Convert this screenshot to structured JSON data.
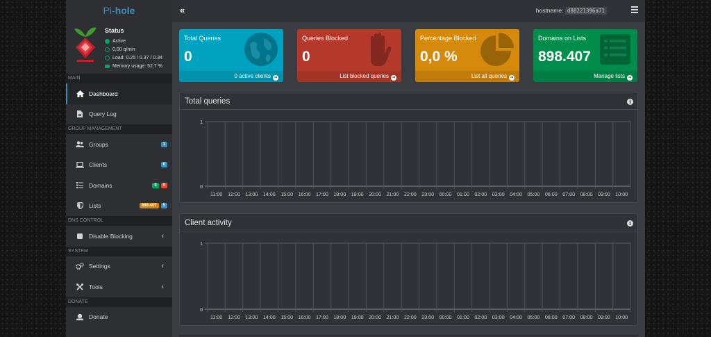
{
  "app": {
    "logo_prefix": "Pi-",
    "logo_bold": "hole"
  },
  "status": {
    "title": "Status",
    "active": "Active",
    "rate": "0,00 q/min",
    "load": "Load: 0.25 / 0.37 / 0.34",
    "memory": "Memory usage: 52.7 %"
  },
  "nav": {
    "main_header": "MAIN",
    "dashboard": "Dashboard",
    "query_log": "Query Log",
    "group_header": "GROUP MANAGEMENT",
    "groups": "Groups",
    "groups_badge": "1",
    "clients": "Clients",
    "clients_badge": "0",
    "domains": "Domains",
    "domains_badge_allow": "0",
    "domains_badge_deny": "0",
    "lists": "Lists",
    "lists_badge_domains": "898.407",
    "lists_badge_count": "5",
    "dns_header": "DNS CONTROL",
    "disable_blocking": "Disable Blocking",
    "system_header": "SYSTEM",
    "settings": "Settings",
    "tools": "Tools",
    "donate_header": "DONATE",
    "donate": "Donate"
  },
  "topbar": {
    "collapse": "«",
    "hostname_label": "hostname:",
    "hostname_value": "d88221396a71"
  },
  "stats": [
    {
      "label": "Total Queries",
      "value": "0",
      "footer": "0 active clients",
      "color": "#00a2c0",
      "icon": "globe-icon"
    },
    {
      "label": "Queries Blocked",
      "value": "0",
      "footer": "List blocked queries",
      "color": "#b5392a",
      "icon": "hand-icon"
    },
    {
      "label": "Percentage Blocked",
      "value": "0,0 %",
      "footer": "List all queries",
      "color": "#d68a0c",
      "icon": "pie-chart-icon"
    },
    {
      "label": "Domains on Lists",
      "value": "898.407",
      "footer": "Manage lists",
      "color": "#008d4c",
      "icon": "list-icon"
    }
  ],
  "chart_data": [
    {
      "type": "bar",
      "title": "Total queries",
      "categories": [
        "11:00",
        "12:00",
        "13:00",
        "14:00",
        "15:00",
        "16:00",
        "17:00",
        "18:00",
        "19:00",
        "20:00",
        "21:00",
        "22:00",
        "23:00",
        "00:00",
        "01:00",
        "02:00",
        "03:00",
        "04:00",
        "05:00",
        "06:00",
        "07:00",
        "08:00",
        "09:00",
        "10:00"
      ],
      "values": [
        0,
        0,
        0,
        0,
        0,
        0,
        0,
        0,
        0,
        0,
        0,
        0,
        0,
        0,
        0,
        0,
        0,
        0,
        0,
        0,
        0,
        0,
        0,
        0
      ],
      "yticks": [
        "0",
        "1"
      ],
      "ylim": [
        0,
        1
      ],
      "grid": true
    },
    {
      "type": "bar",
      "title": "Client activity",
      "categories": [
        "11:00",
        "12:00",
        "13:00",
        "14:00",
        "15:00",
        "16:00",
        "17:00",
        "18:00",
        "19:00",
        "20:00",
        "21:00",
        "22:00",
        "23:00",
        "00:00",
        "01:00",
        "02:00",
        "03:00",
        "04:00",
        "05:00",
        "06:00",
        "07:00",
        "08:00",
        "09:00",
        "10:00"
      ],
      "values": [
        0,
        0,
        0,
        0,
        0,
        0,
        0,
        0,
        0,
        0,
        0,
        0,
        0,
        0,
        0,
        0,
        0,
        0,
        0,
        0,
        0,
        0,
        0,
        0
      ],
      "yticks": [
        "0",
        "1"
      ],
      "ylim": [
        0,
        1
      ],
      "grid": true
    }
  ]
}
